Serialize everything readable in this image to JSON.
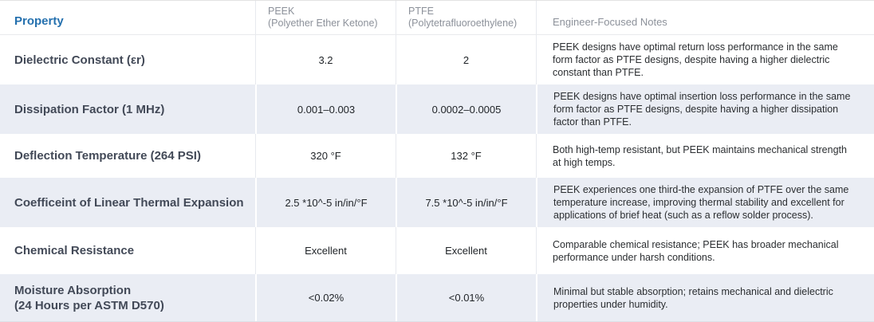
{
  "table": {
    "header": {
      "property": "Property",
      "peek_name": "PEEK",
      "peek_sub": "(Polyether Ether Ketone)",
      "ptfe_name": "PTFE",
      "ptfe_sub": "(Polytetrafluoroethylene)",
      "notes": "Engineer-Focused Notes"
    },
    "rows": [
      {
        "property": "Dielectric Constant (εr)",
        "peek": "3.2",
        "ptfe": "2",
        "notes": "PEEK designs have optimal return loss performance in the same form factor as PTFE designs, despite having a higher dielectric constant than PTFE."
      },
      {
        "property": "Dissipation Factor (1 MHz)",
        "peek": "0.001–0.003",
        "ptfe": "0.0002–0.0005",
        "notes": "PEEK designs have optimal insertion loss performance in the same form factor as PTFE designs, despite having a higher dissipation factor than PTFE."
      },
      {
        "property": "Deflection Temperature (264 PSI)",
        "peek": "320 °F",
        "ptfe": "132 °F",
        "notes": "Both high-temp resistant, but PEEK maintains mechanical strength at high temps."
      },
      {
        "property": "Coefficeint of Linear Thermal Expansion",
        "peek": "2.5 *10^-5 in/in/°F",
        "ptfe": "7.5 *10^-5 in/in/°F",
        "notes": "PEEK experiences one third-the expansion of PTFE over the same temperature increase, improving thermal stability and excellent for applications of brief heat (such as a reflow solder process)."
      },
      {
        "property": "Chemical Resistance",
        "peek": "Excellent",
        "ptfe": "Excellent",
        "notes": "Comparable chemical resistance; PEEK has broader mechanical performance under harsh conditions."
      },
      {
        "property": "Moisture Absorption\n(24 Hours per ASTM D570)",
        "peek": "<0.02%",
        "ptfe": "<0.01%",
        "notes": "Minimal but stable absorption; retains mechanical and dielectric properties under humidity."
      }
    ],
    "colors": {
      "accent_blue": "#2470ae",
      "row_shade": "#eaedf4",
      "separator": "#e7e9ee",
      "header_gray": "#8c919a",
      "property_text": "#424957"
    }
  }
}
